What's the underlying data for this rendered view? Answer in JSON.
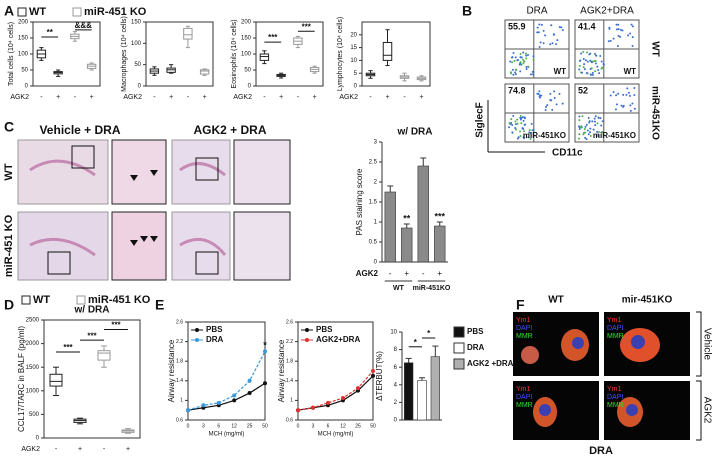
{
  "panel_labels": [
    "A",
    "B",
    "C",
    "D",
    "E",
    "F"
  ],
  "legends": {
    "A": [
      "WT",
      "miR-451 KO"
    ],
    "D": [
      "WT",
      "miR-451 KO"
    ]
  },
  "flow": {
    "columns": [
      "DRA",
      "AGK2+DRA"
    ],
    "rows": [
      "WT",
      "miR-451KO"
    ],
    "plots": [
      {
        "percent": 55.9,
        "label": "WT"
      },
      {
        "percent": 41.4,
        "label": "WT"
      },
      {
        "percent": 74.8,
        "label": "miR-451KO"
      },
      {
        "percent": 52,
        "label": "miR-451KO"
      }
    ],
    "y_label": "SiglecF",
    "x_label": "CD11c"
  },
  "histology": {
    "columns": [
      "Vehicle + DRA",
      "AGK2 + DRA"
    ],
    "rows": [
      "WT",
      "miR-451 KO"
    ]
  },
  "immunofluorescence": {
    "columns": [
      "WT",
      "mir-451KO"
    ],
    "rows": [
      "Vehicle",
      "AGK2"
    ],
    "stains": [
      "Ym1",
      "DAPI",
      "MMR"
    ],
    "treatment": "DRA"
  },
  "chart_data": [
    {
      "type": "box",
      "y_label": "Total cells (10⁴ cells)",
      "x_label": "AGK2",
      "categories": [
        "-",
        "+",
        "-",
        "+"
      ],
      "boxes": [
        {
          "min": 80,
          "q1": 88,
          "median": 100,
          "q3": 112,
          "max": 120
        },
        {
          "min": 30,
          "q1": 38,
          "median": 42,
          "q3": 45,
          "max": 50
        },
        {
          "min": 140,
          "q1": 148,
          "median": 155,
          "q3": 162,
          "max": 170
        },
        {
          "min": 50,
          "q1": 55,
          "median": 62,
          "q3": 68,
          "max": 72
        }
      ],
      "colors": [
        "#222222",
        "#222222",
        "#999999",
        "#999999"
      ],
      "ylim": [
        0,
        200
      ],
      "yticks": [
        0,
        50,
        100,
        150,
        200
      ],
      "annotations": [
        "**",
        "&&&"
      ]
    },
    {
      "type": "box",
      "y_label": "Macrophages (10⁴ cells)",
      "x_label": "AGK2",
      "categories": [
        "-",
        "+",
        "-",
        "+"
      ],
      "boxes": [
        {
          "min": 25,
          "q1": 30,
          "median": 35,
          "q3": 40,
          "max": 45
        },
        {
          "min": 30,
          "q1": 32,
          "median": 38,
          "q3": 42,
          "max": 50
        },
        {
          "min": 90,
          "q1": 110,
          "median": 120,
          "q3": 135,
          "max": 140
        },
        {
          "min": 25,
          "q1": 28,
          "median": 35,
          "q3": 38,
          "max": 40
        }
      ],
      "colors": [
        "#222222",
        "#222222",
        "#999999",
        "#999999"
      ],
      "ylim": [
        0,
        150
      ],
      "yticks": [
        0,
        50,
        100,
        150
      ],
      "annotations": []
    },
    {
      "type": "box",
      "y_label": "Eosinophils (10⁴ cells)",
      "x_label": "AGK2",
      "categories": [
        "-",
        "+",
        "-",
        "+"
      ],
      "boxes": [
        {
          "min": 70,
          "q1": 80,
          "median": 92,
          "q3": 100,
          "max": 110
        },
        {
          "min": 25,
          "q1": 30,
          "median": 33,
          "q3": 36,
          "max": 40
        },
        {
          "min": 120,
          "q1": 130,
          "median": 140,
          "q3": 150,
          "max": 155
        },
        {
          "min": 40,
          "q1": 45,
          "median": 52,
          "q3": 58,
          "max": 62
        }
      ],
      "colors": [
        "#222222",
        "#222222",
        "#999999",
        "#999999"
      ],
      "ylim": [
        0,
        200
      ],
      "yticks": [
        0,
        50,
        100,
        150,
        200
      ],
      "annotations": [
        "***",
        "***"
      ]
    },
    {
      "type": "box",
      "y_label": "Lymphocytes (10⁴ cells)",
      "x_label": "AGK2",
      "categories": [
        "-",
        "+",
        "-",
        "+"
      ],
      "boxes": [
        {
          "min": 3,
          "q1": 4,
          "median": 4.5,
          "q3": 5,
          "max": 6
        },
        {
          "min": 8,
          "q1": 10,
          "median": 12,
          "q3": 17,
          "max": 22
        },
        {
          "min": 2,
          "q1": 3,
          "median": 3.5,
          "q3": 4,
          "max": 5
        },
        {
          "min": 2,
          "q1": 2.5,
          "median": 3,
          "q3": 3.5,
          "max": 4
        }
      ],
      "colors": [
        "#222222",
        "#222222",
        "#999999",
        "#999999"
      ],
      "ylim": [
        0,
        25
      ],
      "yticks": [
        0,
        5,
        10,
        15,
        20
      ],
      "annotations": []
    },
    {
      "type": "bar",
      "title": "w/ DRA",
      "y_label": "PAS staining score",
      "x_label": "AGK2",
      "categories": [
        "-",
        "+",
        "-",
        "+"
      ],
      "groups": [
        "WT",
        "miR-451KO"
      ],
      "values": [
        1.75,
        0.85,
        2.4,
        0.9
      ],
      "errors": [
        0.15,
        0.1,
        0.2,
        0.1
      ],
      "color": "#8a8a8a",
      "ylim": [
        0,
        3
      ],
      "yticks": [
        0,
        0.5,
        1,
        1.5,
        2,
        2.5,
        3
      ],
      "annotations": [
        "**",
        "***"
      ]
    },
    {
      "type": "box",
      "title": "w/ DRA",
      "y_label": "CCL17/TARC in BALF (pg/ml)",
      "x_label": "AGK2",
      "categories": [
        "-",
        "+",
        "-",
        "+"
      ],
      "boxes": [
        {
          "min": 900,
          "q1": 1100,
          "median": 1200,
          "q3": 1350,
          "max": 1500
        },
        {
          "min": 300,
          "q1": 330,
          "median": 370,
          "q3": 400,
          "max": 420
        },
        {
          "min": 1500,
          "q1": 1650,
          "median": 1800,
          "q3": 1850,
          "max": 1950
        },
        {
          "min": 100,
          "q1": 120,
          "median": 150,
          "q3": 170,
          "max": 200
        }
      ],
      "colors": [
        "#222222",
        "#222222",
        "#999999",
        "#999999"
      ],
      "ylim": [
        0,
        2500
      ],
      "yticks": [
        0,
        500,
        1000,
        1500,
        2000,
        2500
      ],
      "annotations": [
        "***",
        "***",
        "***"
      ]
    },
    {
      "type": "line",
      "y_label": "Airway resistance",
      "x_label": "MCH (mg/ml)",
      "categories": [
        "0",
        "3",
        "6",
        "12",
        "25",
        "50"
      ],
      "series": [
        {
          "name": "PBS",
          "color": "#111111",
          "values": [
            0.8,
            0.85,
            0.9,
            1.0,
            1.15,
            1.35
          ]
        },
        {
          "name": "DRA",
          "color": "#3a9ad9",
          "values": [
            0.8,
            0.9,
            0.95,
            1.1,
            1.4,
            2.0
          ]
        }
      ],
      "ylim": [
        0.6,
        2.6
      ],
      "yticks": [
        0.6,
        1,
        1.4,
        1.8,
        2.2,
        2.6
      ],
      "annotations": [
        "*"
      ]
    },
    {
      "type": "line",
      "y_label": "Airway resistance",
      "x_label": "MCH (mg/ml)",
      "categories": [
        "0",
        "3",
        "6",
        "12",
        "25",
        "50"
      ],
      "series": [
        {
          "name": "PBS",
          "color": "#111111",
          "values": [
            0.8,
            0.85,
            0.9,
            1.0,
            1.2,
            1.5
          ]
        },
        {
          "name": "AGK2+DRA",
          "color": "#e03030",
          "values": [
            0.8,
            0.85,
            0.95,
            1.05,
            1.25,
            1.6
          ]
        }
      ],
      "ylim": [
        0.6,
        2.6
      ],
      "yticks": [
        0.6,
        1,
        1.4,
        1.8,
        2.2,
        2.6
      ],
      "annotations": []
    },
    {
      "type": "bar",
      "y_label": "ΔTERBUT(%)",
      "categories": [
        "PBS",
        "DRA",
        "AGK2 +DRA"
      ],
      "legend": "right",
      "values": [
        6.5,
        4.5,
        7.2
      ],
      "errors": [
        0.5,
        0.3,
        1.2
      ],
      "colors": [
        "#111111",
        "#ffffff",
        "#b0b0b0"
      ],
      "ylim": [
        0,
        10
      ],
      "yticks": [
        0,
        2,
        4,
        6,
        8,
        10
      ],
      "annotations": [
        "*",
        "*"
      ]
    }
  ]
}
